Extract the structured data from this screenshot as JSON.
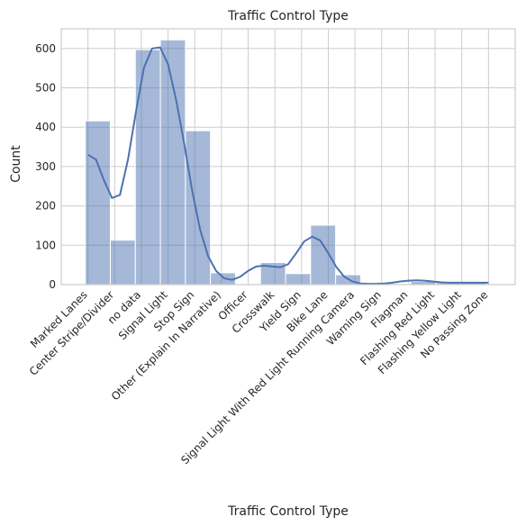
{
  "chart_data": {
    "type": "bar",
    "title": "Traffic Control Type",
    "xlabel": "Traffic Control Type",
    "ylabel": "Count",
    "ylim": [
      0,
      650
    ],
    "yticks": [
      0,
      100,
      200,
      300,
      400,
      500,
      600
    ],
    "grid": true,
    "colors": {
      "bar": "#4c72b0",
      "grid": "#cccccc",
      "text": "#262626"
    },
    "categories": [
      "Marked Lanes",
      "Center Stripe/Divider",
      "no data",
      "Signal Light",
      "Stop Sign",
      "Other (Explain In Narrative)",
      "Officer",
      "Crosswalk",
      "Yield Sign",
      "Bike Lane",
      "Signal Light With Red Light Running Camera",
      "Warning Sign",
      "Flagman",
      "Flashing Red Light",
      "Flashing Yellow Light",
      "No Passing Zone"
    ],
    "values": [
      416,
      113,
      597,
      622,
      391,
      30,
      0,
      56,
      28,
      151,
      25,
      2,
      2,
      8,
      5,
      5
    ],
    "kde": {
      "x": [
        0,
        0.3,
        0.6,
        0.9,
        1.2,
        1.5,
        1.8,
        2.1,
        2.4,
        2.7,
        3.0,
        3.3,
        3.6,
        3.9,
        4.2,
        4.5,
        4.8,
        5.1,
        5.4,
        5.7,
        6.0,
        6.3,
        6.6,
        6.9,
        7.2,
        7.5,
        7.8,
        8.1,
        8.4,
        8.7,
        9.0,
        9.3,
        9.6,
        9.9,
        10.2,
        10.5,
        10.8,
        11.1,
        11.4,
        11.7,
        12.0,
        12.3,
        12.6,
        12.9,
        13.2,
        13.5,
        13.8,
        14.1,
        14.4,
        14.7,
        15.0
      ],
      "y": [
        330,
        318,
        265,
        220,
        228,
        318,
        440,
        552,
        600,
        603,
        560,
        470,
        360,
        240,
        140,
        72,
        35,
        16,
        12,
        20,
        35,
        46,
        48,
        46,
        44,
        52,
        80,
        110,
        122,
        112,
        80,
        45,
        20,
        8,
        3,
        2,
        2,
        3,
        5,
        8,
        10,
        11,
        10,
        8,
        6,
        5,
        5,
        5,
        5,
        5,
        5
      ]
    }
  }
}
